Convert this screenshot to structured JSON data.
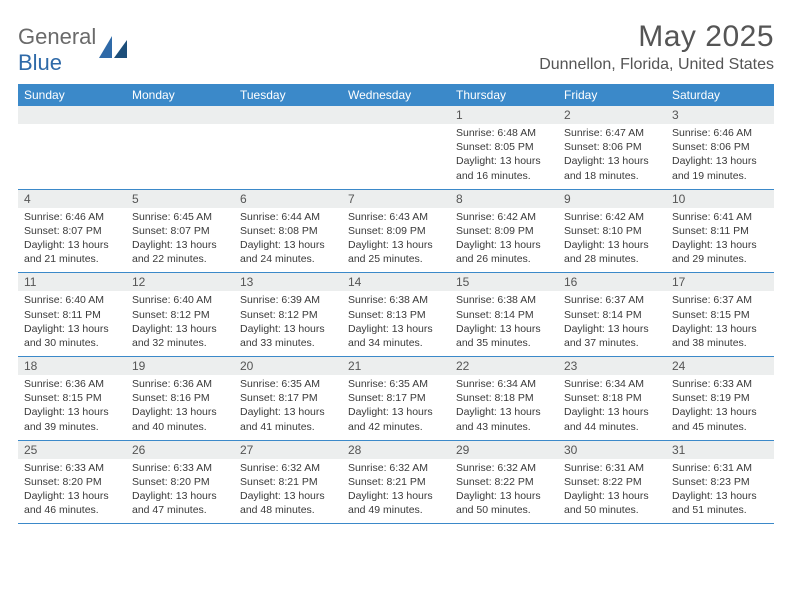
{
  "logo": {
    "text1": "General",
    "text2": "Blue"
  },
  "title": "May 2025",
  "location": "Dunnellon, Florida, United States",
  "colors": {
    "header_bg": "#3b89c9",
    "header_text": "#ffffff",
    "daynum_bg": "#eceeee",
    "border": "#3b89c9",
    "body_text": "#3a3a3a",
    "title_text": "#555555"
  },
  "days_of_week": [
    "Sunday",
    "Monday",
    "Tuesday",
    "Wednesday",
    "Thursday",
    "Friday",
    "Saturday"
  ],
  "weeks": [
    [
      null,
      null,
      null,
      null,
      {
        "n": "1",
        "sunrise": "6:48 AM",
        "sunset": "8:05 PM",
        "daylight": "13 hours and 16 minutes."
      },
      {
        "n": "2",
        "sunrise": "6:47 AM",
        "sunset": "8:06 PM",
        "daylight": "13 hours and 18 minutes."
      },
      {
        "n": "3",
        "sunrise": "6:46 AM",
        "sunset": "8:06 PM",
        "daylight": "13 hours and 19 minutes."
      }
    ],
    [
      {
        "n": "4",
        "sunrise": "6:46 AM",
        "sunset": "8:07 PM",
        "daylight": "13 hours and 21 minutes."
      },
      {
        "n": "5",
        "sunrise": "6:45 AM",
        "sunset": "8:07 PM",
        "daylight": "13 hours and 22 minutes."
      },
      {
        "n": "6",
        "sunrise": "6:44 AM",
        "sunset": "8:08 PM",
        "daylight": "13 hours and 24 minutes."
      },
      {
        "n": "7",
        "sunrise": "6:43 AM",
        "sunset": "8:09 PM",
        "daylight": "13 hours and 25 minutes."
      },
      {
        "n": "8",
        "sunrise": "6:42 AM",
        "sunset": "8:09 PM",
        "daylight": "13 hours and 26 minutes."
      },
      {
        "n": "9",
        "sunrise": "6:42 AM",
        "sunset": "8:10 PM",
        "daylight": "13 hours and 28 minutes."
      },
      {
        "n": "10",
        "sunrise": "6:41 AM",
        "sunset": "8:11 PM",
        "daylight": "13 hours and 29 minutes."
      }
    ],
    [
      {
        "n": "11",
        "sunrise": "6:40 AM",
        "sunset": "8:11 PM",
        "daylight": "13 hours and 30 minutes."
      },
      {
        "n": "12",
        "sunrise": "6:40 AM",
        "sunset": "8:12 PM",
        "daylight": "13 hours and 32 minutes."
      },
      {
        "n": "13",
        "sunrise": "6:39 AM",
        "sunset": "8:12 PM",
        "daylight": "13 hours and 33 minutes."
      },
      {
        "n": "14",
        "sunrise": "6:38 AM",
        "sunset": "8:13 PM",
        "daylight": "13 hours and 34 minutes."
      },
      {
        "n": "15",
        "sunrise": "6:38 AM",
        "sunset": "8:14 PM",
        "daylight": "13 hours and 35 minutes."
      },
      {
        "n": "16",
        "sunrise": "6:37 AM",
        "sunset": "8:14 PM",
        "daylight": "13 hours and 37 minutes."
      },
      {
        "n": "17",
        "sunrise": "6:37 AM",
        "sunset": "8:15 PM",
        "daylight": "13 hours and 38 minutes."
      }
    ],
    [
      {
        "n": "18",
        "sunrise": "6:36 AM",
        "sunset": "8:15 PM",
        "daylight": "13 hours and 39 minutes."
      },
      {
        "n": "19",
        "sunrise": "6:36 AM",
        "sunset": "8:16 PM",
        "daylight": "13 hours and 40 minutes."
      },
      {
        "n": "20",
        "sunrise": "6:35 AM",
        "sunset": "8:17 PM",
        "daylight": "13 hours and 41 minutes."
      },
      {
        "n": "21",
        "sunrise": "6:35 AM",
        "sunset": "8:17 PM",
        "daylight": "13 hours and 42 minutes."
      },
      {
        "n": "22",
        "sunrise": "6:34 AM",
        "sunset": "8:18 PM",
        "daylight": "13 hours and 43 minutes."
      },
      {
        "n": "23",
        "sunrise": "6:34 AM",
        "sunset": "8:18 PM",
        "daylight": "13 hours and 44 minutes."
      },
      {
        "n": "24",
        "sunrise": "6:33 AM",
        "sunset": "8:19 PM",
        "daylight": "13 hours and 45 minutes."
      }
    ],
    [
      {
        "n": "25",
        "sunrise": "6:33 AM",
        "sunset": "8:20 PM",
        "daylight": "13 hours and 46 minutes."
      },
      {
        "n": "26",
        "sunrise": "6:33 AM",
        "sunset": "8:20 PM",
        "daylight": "13 hours and 47 minutes."
      },
      {
        "n": "27",
        "sunrise": "6:32 AM",
        "sunset": "8:21 PM",
        "daylight": "13 hours and 48 minutes."
      },
      {
        "n": "28",
        "sunrise": "6:32 AM",
        "sunset": "8:21 PM",
        "daylight": "13 hours and 49 minutes."
      },
      {
        "n": "29",
        "sunrise": "6:32 AM",
        "sunset": "8:22 PM",
        "daylight": "13 hours and 50 minutes."
      },
      {
        "n": "30",
        "sunrise": "6:31 AM",
        "sunset": "8:22 PM",
        "daylight": "13 hours and 50 minutes."
      },
      {
        "n": "31",
        "sunrise": "6:31 AM",
        "sunset": "8:23 PM",
        "daylight": "13 hours and 51 minutes."
      }
    ]
  ],
  "labels": {
    "sunrise": "Sunrise: ",
    "sunset": "Sunset: ",
    "daylight": "Daylight: "
  }
}
